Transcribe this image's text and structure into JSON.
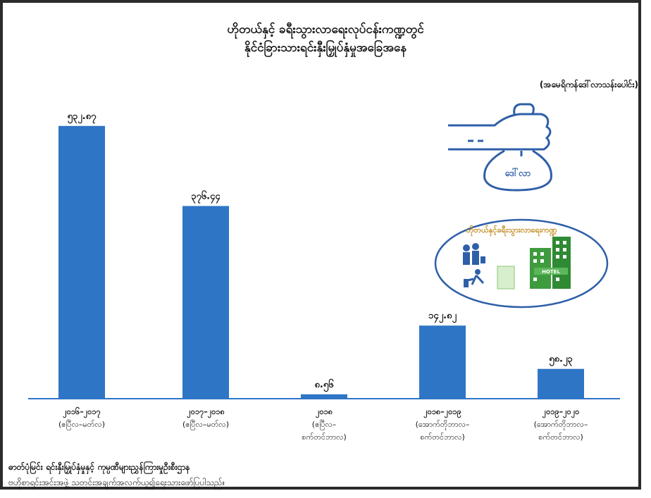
{
  "chart_data": {
    "type": "bar",
    "title_line1": "ဟိုတယ်နှင့် ခရီးသွားလာရေးလုပ်ငန်းကဏ္ဍတွင်",
    "title_line2": "နိုင်ငံခြားသားရင်းနှီးမြှုပ်နှံမှုအခြေအနေ",
    "unit_label": "(အမေရိကန်ဒေါ်လာသန်းပေါင်း)",
    "categories": [
      [
        "၂၀၁၆–၂၀၁၇",
        "(ဧပြီလ–မတ်လ)"
      ],
      [
        "၂၀၁၇–၂၀၁၈",
        "(ဧပြီလ–မတ်လ)"
      ],
      [
        "၂၀၁၈",
        "(ဧပြီလ–",
        "စက်တင်ဘာလ)"
      ],
      [
        "၂၀၁၈–၂၀၁၉",
        "(အောက်တိုဘာလ–",
        "စက်တင်ဘာလ)"
      ],
      [
        "၂၀၁၉–၂၀၂၀",
        "(အောက်တိုဘာလ–",
        "စက်တင်ဘာလ)"
      ]
    ],
    "values": [
      532.87,
      376.44,
      8.56,
      142.82,
      58.23
    ],
    "value_labels": [
      "၅၃၂.၈၇",
      "၃၇၆.၄၄",
      "၈.၅၆",
      "၁၄၂.၈၂",
      "၅၈.၂၃"
    ],
    "ylim": [
      0,
      600
    ],
    "bar_color": "#2e75c6",
    "axis_color": "#2e75c6",
    "grid": false
  },
  "illustration": {
    "money_bag_label": "ဒေါ်လာ",
    "badge_text": "ဟိုတယ်နှင့်ခရီးသွားလာရေးကဏ္ဍ",
    "hotel_sign": "HOTEL"
  },
  "footer": {
    "line1": "ဓာတ်ပုံမြင်း ရင်းနှီးမြှုပ်နှံမှုနှင့် ကုမ္ပဏီများညွှန်ကြားမှုဦးစီးဌာန",
    "line2": "ဗဟိုစာရင်းအင်းအဖွဲ့ သတင်းအချက်အလက်ယူ၍ရေးသားဖော်ပြပါသည်။"
  }
}
